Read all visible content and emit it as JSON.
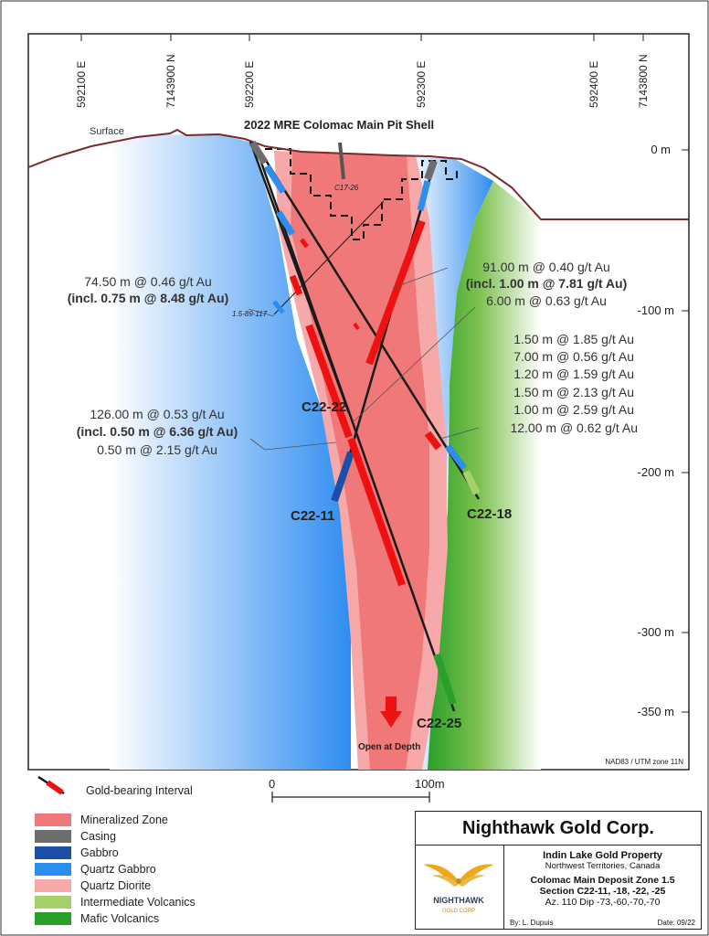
{
  "colors": {
    "mineralized_zone": "#f07878",
    "casing": "#6d6d6d",
    "gabbro": "#1e4fa8",
    "quartz_gabbro": "#2b8ef0",
    "quartz_diorite": "#f7a9a9",
    "intermediate_volcanics": "#a7cf6a",
    "mafic_volcanics": "#2aa02a",
    "gold_interval": "#ee1111",
    "surface_line": "#7a2a2a"
  },
  "section": {
    "eastings": [
      "592100 E",
      "7143900 N",
      "592200 E",
      "592300 E",
      "592400 E",
      "7143800 N"
    ],
    "depth_labels": [
      "0 m",
      "-100 m",
      "-200 m",
      "-300 m",
      "-350 m"
    ],
    "surface_label": "Surface",
    "pit_shell_title": "2022 MRE Colomac Main Pit Shell",
    "open_at_depth": "Open at Depth",
    "datum": "NAD83 / UTM zone 11N",
    "hole_labels": {
      "c17_26": "C17-26",
      "h1589": "1.5-89-117",
      "c22_22": "C22-22",
      "c22_11": "C22-11",
      "c22_18": "C22-18",
      "c22_25": "C22-25"
    }
  },
  "annotations": {
    "left_upper": [
      "74.50 m  @ 0.46 g/t Au",
      "(incl. 0.75 m @ 8.48 g/t Au)"
    ],
    "right_upper": [
      "91.00 m  @ 0.40 g/t Au",
      "(incl. 1.00 m @ 7.81 g/t Au)",
      "6.00 m @ 0.63 g/t Au"
    ],
    "right_list": [
      "1.50 m @ 1.85 g/t Au",
      "7.00 m @ 0.56 g/t Au",
      "1.20 m @ 1.59 g/t Au",
      "1.50 m @ 2.13 g/t Au",
      "1.00 m @ 2.59 g/t Au",
      "12.00 m @ 0.62 g/t Au"
    ],
    "left_lower": [
      "126.00 m  @ 0.53 g/t Au",
      "(incl. 0.50 m @ 6.36 g/t Au)",
      "0.50 m @ 2.15 g/t Au"
    ]
  },
  "scale": {
    "start": "0",
    "end": "100m"
  },
  "legend": {
    "gold_interval": "Gold-bearing Interval",
    "items": [
      {
        "label": "Mineralized Zone",
        "color": "#f07878"
      },
      {
        "label": "Casing",
        "color": "#6d6d6d"
      },
      {
        "label": "Gabbro",
        "color": "#1e4fa8"
      },
      {
        "label": "Quartz Gabbro",
        "color": "#2b8ef0"
      },
      {
        "label": "Quartz Diorite",
        "color": "#f7a9a9"
      },
      {
        "label": "Intermediate Volcanics",
        "color": "#a7cf6a"
      },
      {
        "label": "Mafic Volcanics",
        "color": "#2aa02a"
      }
    ]
  },
  "title_block": {
    "company": "Nighthawk Gold Corp.",
    "logo_name": "NIGHTHAWK",
    "logo_sub": "GOLD CORP",
    "property": "Indin Lake Gold Property",
    "location": "Northwest Territories, Canada",
    "deposit": "Colomac Main Deposit Zone 1.5",
    "section": "Section C22-11, -18, -22, -25",
    "azimuth": "Az. 110  Dip -73,-60,-70,-70",
    "author": "By: L. Dupuis",
    "date": "Date: 09/22"
  }
}
